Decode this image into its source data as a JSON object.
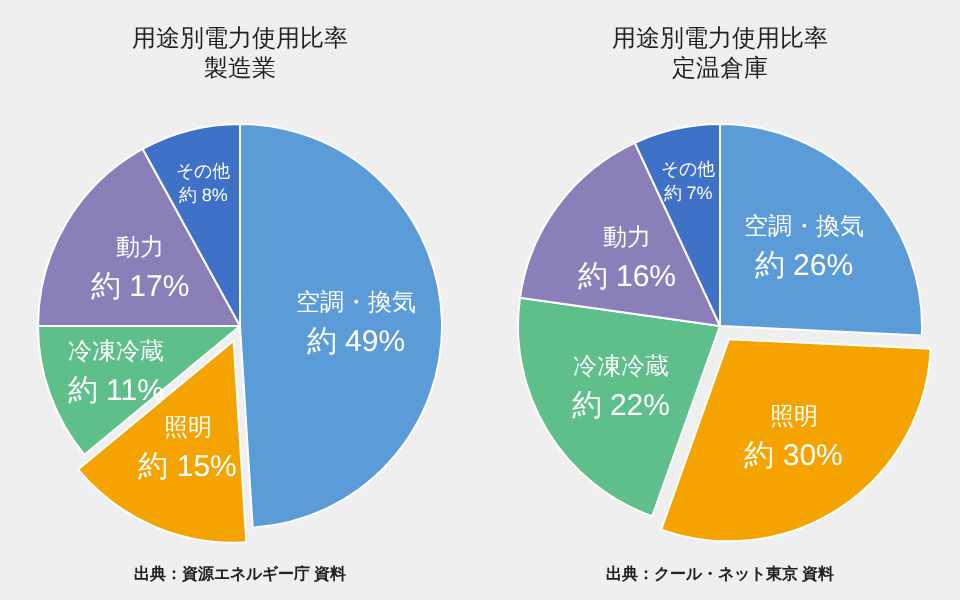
{
  "chart_data": [
    {
      "type": "pie",
      "title": "用途別電力使用比率",
      "subtitle": "製造業",
      "categories": [
        "空調・換気",
        "照明",
        "冷凍冷蔵",
        "動力",
        "その他"
      ],
      "values": [
        49,
        15,
        11,
        17,
        8
      ],
      "value_labels": [
        "約 49%",
        "約 15%",
        "約 11%",
        "約 17%",
        "約 8%"
      ],
      "colors": [
        "#5b9bd8",
        "#f5a300",
        "#5fbf8a",
        "#8a7fb8",
        "#3f72c6"
      ],
      "annotations": [
        "出典：資源エネルギー庁 資料"
      ]
    },
    {
      "type": "pie",
      "title": "用途別電力使用比率",
      "subtitle": "定温倉庫",
      "categories": [
        "空調・換気",
        "照明",
        "冷凍冷蔵",
        "動力",
        "その他"
      ],
      "values": [
        26,
        30,
        22,
        16,
        7
      ],
      "value_labels": [
        "約 26%",
        "約 30%",
        "約 22%",
        "約 16%",
        "約 7%"
      ],
      "colors": [
        "#5b9bd8",
        "#f5a300",
        "#5fbf8a",
        "#8a7fb8",
        "#3f72c6"
      ],
      "annotations": [
        "出典：クール・ネット東京 資料"
      ]
    }
  ]
}
